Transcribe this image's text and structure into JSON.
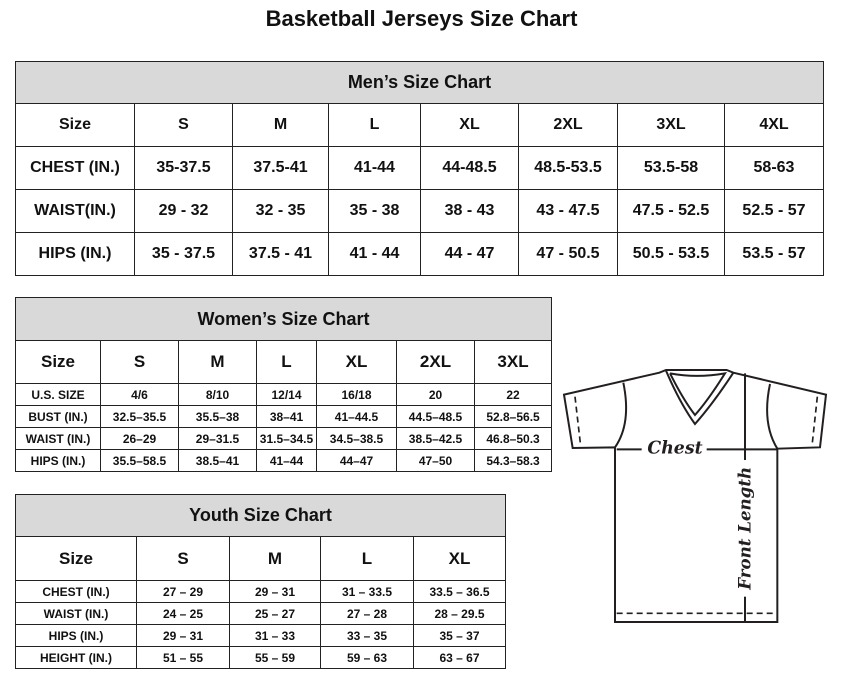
{
  "page_title": "Basketball Jerseys Size Chart",
  "men": {
    "caption": "Men’s Size Chart",
    "header": [
      "Size",
      "S",
      "M",
      "L",
      "XL",
      "2XL",
      "3XL",
      "4XL"
    ],
    "rows": [
      [
        "CHEST (IN.)",
        "35-37.5",
        "37.5-41",
        "41-44",
        "44-48.5",
        "48.5-53.5",
        "53.5-58",
        "58-63"
      ],
      [
        "WAIST(IN.)",
        "29 - 32",
        "32 - 35",
        "35 - 38",
        "38 - 43",
        "43 - 47.5",
        "47.5 - 52.5",
        "52.5 - 57"
      ],
      [
        "HIPS (IN.)",
        "35 - 37.5",
        "37.5 - 41",
        "41 - 44",
        "44 - 47",
        "47 - 50.5",
        "50.5 - 53.5",
        "53.5 - 57"
      ]
    ]
  },
  "women": {
    "caption": "Women’s Size Chart",
    "header": [
      "Size",
      "S",
      "M",
      "L",
      "XL",
      "2XL",
      "3XL"
    ],
    "rows": [
      [
        "U.S. SIZE",
        "4/6",
        "8/10",
        "12/14",
        "16/18",
        "20",
        "22"
      ],
      [
        "BUST (IN.)",
        "32.5–35.5",
        "35.5–38",
        "38–41",
        "41–44.5",
        "44.5–48.5",
        "52.8–56.5"
      ],
      [
        "WAIST (IN.)",
        "26–29",
        "29–31.5",
        "31.5–34.5",
        "34.5–38.5",
        "38.5–42.5",
        "46.8–50.3"
      ],
      [
        "HIPS (IN.)",
        "35.5–58.5",
        "38.5–41",
        "41–44",
        "44–47",
        "47–50",
        "54.3–58.3"
      ]
    ]
  },
  "youth": {
    "caption": "Youth Size Chart",
    "header": [
      "Size",
      "S",
      "M",
      "L",
      "XL"
    ],
    "rows": [
      [
        "CHEST (IN.)",
        "27 – 29",
        "29 – 31",
        "31 – 33.5",
        "33.5 – 36.5"
      ],
      [
        "WAIST (IN.)",
        "24 – 25",
        "25 – 27",
        "27 – 28",
        "28 – 29.5"
      ],
      [
        "HIPS (IN.)",
        "29 – 31",
        "31 – 33",
        "33 – 35",
        "35 – 37"
      ],
      [
        "HEIGHT (IN.)",
        "51 – 55",
        "55 – 59",
        "59 – 63",
        "63 – 67"
      ]
    ]
  },
  "diagram": {
    "chest_label": "Chest",
    "length_label": "Front Length"
  },
  "colors": {
    "caption_bg": "#d9d9d9",
    "border": "#222222"
  }
}
